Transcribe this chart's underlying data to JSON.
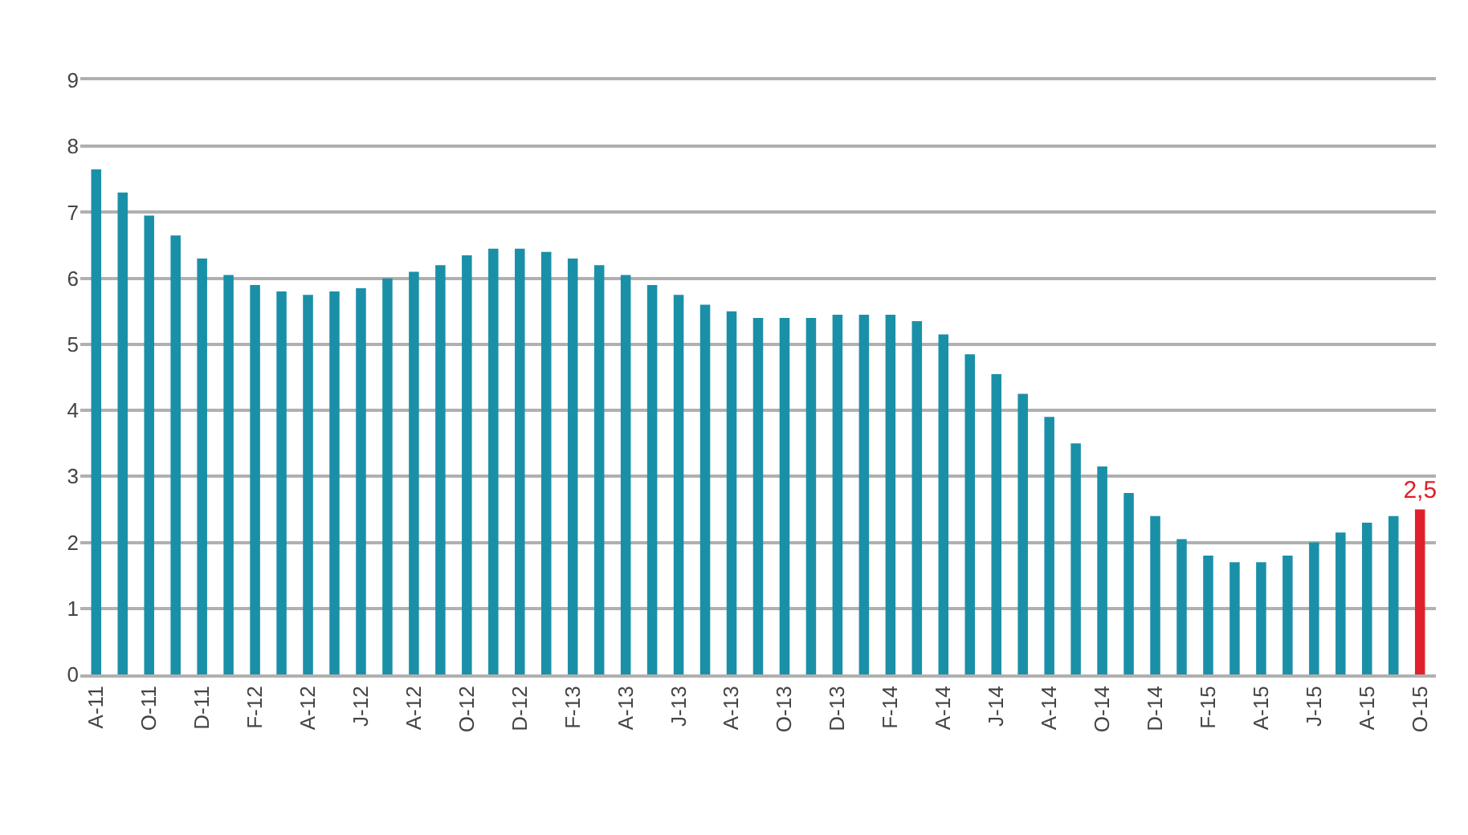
{
  "chart_data": {
    "type": "bar",
    "categories": [
      "A-11",
      null,
      "O-11",
      null,
      "D-11",
      null,
      "F-12",
      null,
      "A-12",
      null,
      "J-12",
      null,
      "A-12",
      null,
      "O-12",
      null,
      "D-12",
      null,
      "F-13",
      null,
      "A-13",
      null,
      "J-13",
      null,
      "A-13",
      null,
      "O-13",
      null,
      "D-13",
      null,
      "F-14",
      null,
      "A-14",
      null,
      "J-14",
      null,
      "A-14",
      null,
      "O-14",
      null,
      "D-14",
      null,
      "F-15",
      null,
      "A-15",
      null,
      "J-15",
      null,
      "A-15",
      null,
      "O-15"
    ],
    "values": [
      7.65,
      7.3,
      6.95,
      6.65,
      6.3,
      6.05,
      5.9,
      5.8,
      5.75,
      5.8,
      5.85,
      6.0,
      6.1,
      6.2,
      6.35,
      6.45,
      6.45,
      6.4,
      6.3,
      6.2,
      6.05,
      5.9,
      5.75,
      5.6,
      5.5,
      5.4,
      5.4,
      5.4,
      5.45,
      5.45,
      5.45,
      5.35,
      5.15,
      4.85,
      4.55,
      4.25,
      3.9,
      3.5,
      3.15,
      2.75,
      2.4,
      2.05,
      1.8,
      1.7,
      1.7,
      1.8,
      2.0,
      2.15,
      2.3,
      2.4,
      2.5
    ],
    "colors": [
      "#1a90a8",
      "#1a90a8",
      "#1a90a8",
      "#1a90a8",
      "#1a90a8",
      "#1a90a8",
      "#1a90a8",
      "#1a90a8",
      "#1a90a8",
      "#1a90a8",
      "#1a90a8",
      "#1a90a8",
      "#1a90a8",
      "#1a90a8",
      "#1a90a8",
      "#1a90a8",
      "#1a90a8",
      "#1a90a8",
      "#1a90a8",
      "#1a90a8",
      "#1a90a8",
      "#1a90a8",
      "#1a90a8",
      "#1a90a8",
      "#1a90a8",
      "#1a90a8",
      "#1a90a8",
      "#1a90a8",
      "#1a90a8",
      "#1a90a8",
      "#1a90a8",
      "#1a90a8",
      "#1a90a8",
      "#1a90a8",
      "#1a90a8",
      "#1a90a8",
      "#1a90a8",
      "#1a90a8",
      "#1a90a8",
      "#1a90a8",
      "#1a90a8",
      "#1a90a8",
      "#1a90a8",
      "#1a90a8",
      "#1a90a8",
      "#1a90a8",
      "#1a90a8",
      "#1a90a8",
      "#1a90a8",
      "#1a90a8",
      "#e0202a"
    ],
    "value_labels": [
      null,
      null,
      null,
      null,
      null,
      null,
      null,
      null,
      null,
      null,
      null,
      null,
      null,
      null,
      null,
      null,
      null,
      null,
      null,
      null,
      null,
      null,
      null,
      null,
      null,
      null,
      null,
      null,
      null,
      null,
      null,
      null,
      null,
      null,
      null,
      null,
      null,
      null,
      null,
      null,
      null,
      null,
      null,
      null,
      null,
      null,
      null,
      null,
      null,
      null,
      "2,5"
    ],
    "ylim": [
      0,
      9
    ],
    "yticks": [
      0,
      1,
      2,
      3,
      4,
      5,
      6,
      7,
      8,
      9
    ],
    "grid": "y"
  }
}
